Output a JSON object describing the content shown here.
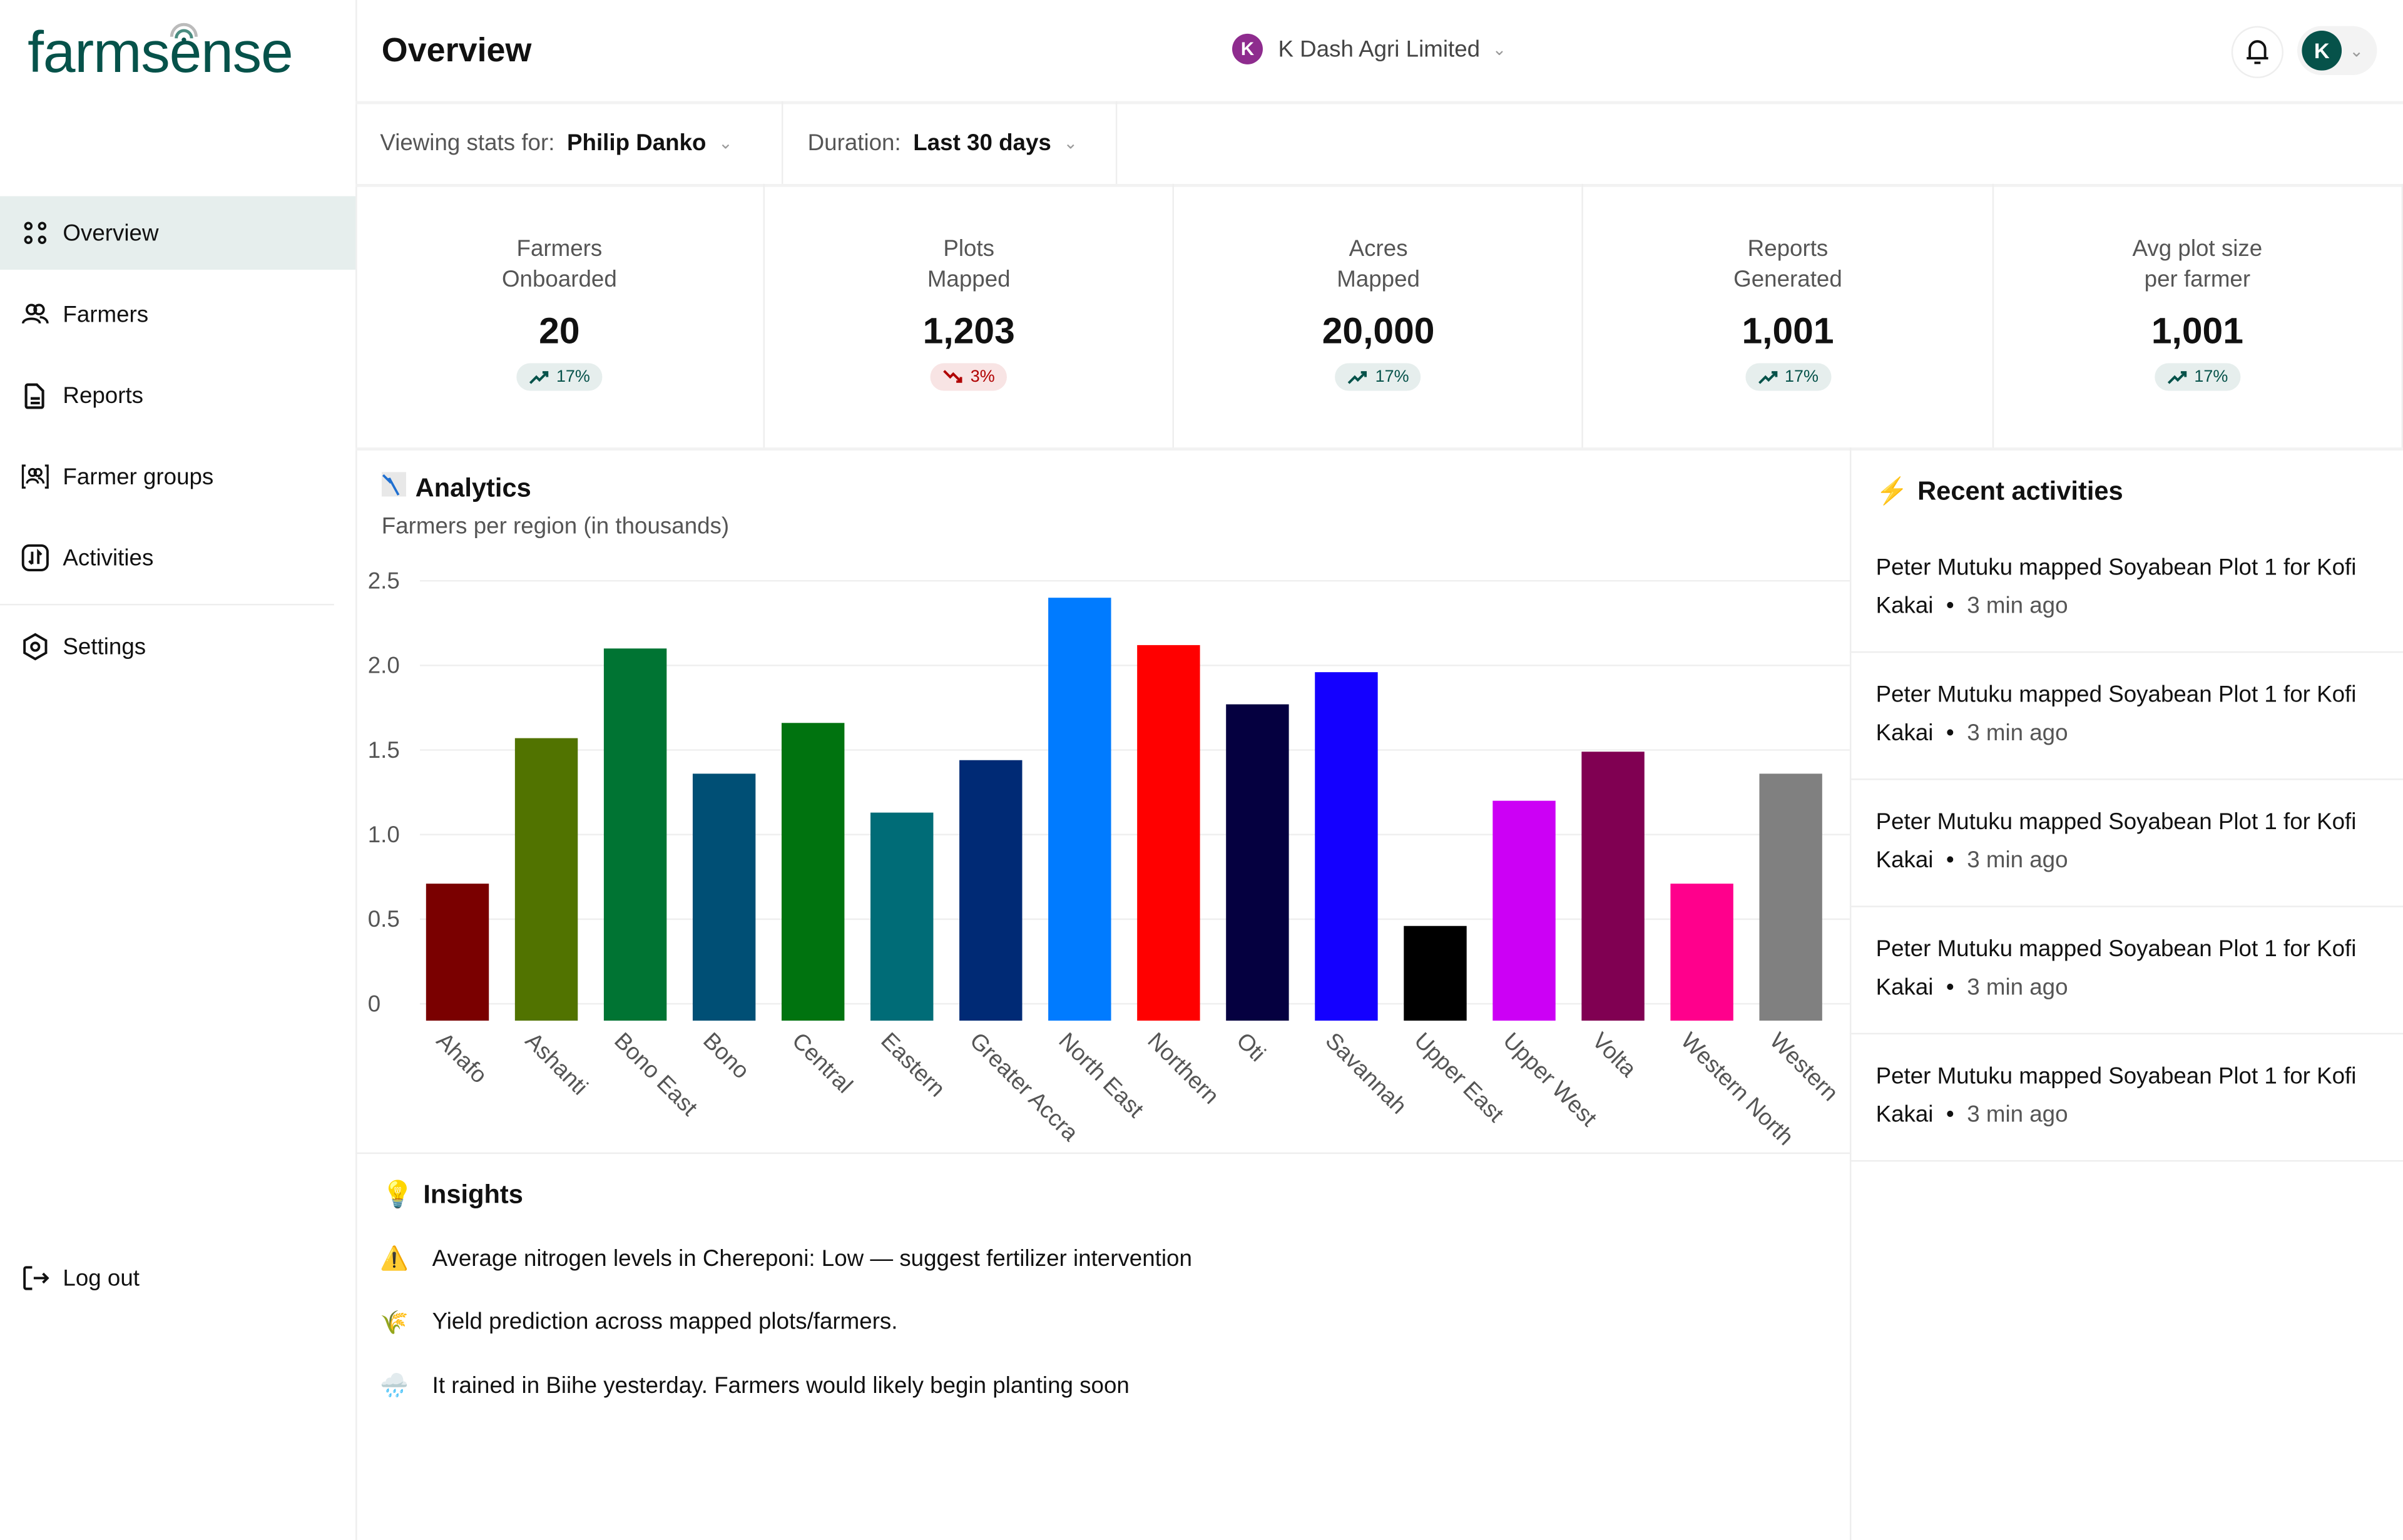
{
  "app": {
    "logo": "farmsense"
  },
  "sidebar": {
    "items": [
      {
        "label": "Overview",
        "icon": "grid-dots-icon",
        "active": true
      },
      {
        "label": "Farmers",
        "icon": "users-icon"
      },
      {
        "label": "Reports",
        "icon": "document-icon"
      },
      {
        "label": "Farmer groups",
        "icon": "user-group-icon"
      },
      {
        "label": "Activities",
        "icon": "activity-arrows-icon"
      },
      {
        "label": "Settings",
        "icon": "settings-hexagon-icon"
      }
    ],
    "logout": "Log out"
  },
  "header": {
    "title": "Overview",
    "org_name": "K Dash Agri Limited",
    "org_logo_letter": "K",
    "avatar_letter": "K"
  },
  "filters": {
    "viewing_label": "Viewing stats for:",
    "viewing_value": "Philip Danko",
    "duration_label": "Duration:",
    "duration_value": "Last 30 days"
  },
  "stats": [
    {
      "label1": "Farmers",
      "label2": "Onboarded",
      "value": "20",
      "change": "17%",
      "trend": "up"
    },
    {
      "label1": "Plots",
      "label2": "Mapped",
      "value": "1,203",
      "change": "3%",
      "trend": "down"
    },
    {
      "label1": "Acres",
      "label2": "Mapped",
      "value": "20,000",
      "change": "17%",
      "trend": "up"
    },
    {
      "label1": "Reports",
      "label2": "Generated",
      "value": "1,001",
      "change": "17%",
      "trend": "up"
    },
    {
      "label1": "Avg plot size",
      "label2": "per farmer",
      "value": "1,001",
      "change": "17%",
      "trend": "up"
    }
  ],
  "colors": {
    "brand": "#06524a",
    "up": "#06524a",
    "down": "#b00000",
    "active_bg": "#e6eeed"
  },
  "analytics": {
    "title": "Analytics",
    "subtitle": "Farmers per region (in thousands)"
  },
  "chart_data": {
    "type": "bar",
    "title": "",
    "xlabel": "",
    "ylabel": "",
    "ylim": [
      0,
      2.5
    ],
    "yticks": [
      "0",
      "0.5",
      "1.0",
      "1.5",
      "2.0",
      "2.5"
    ],
    "grid": true,
    "categories": [
      "Ahafo",
      "Ashanti",
      "Bono East",
      "Bono",
      "Central",
      "Eastern",
      "Greater Accra",
      "North East",
      "Northern",
      "Oti",
      "Savannah",
      "Upper East",
      "Upper West",
      "Volta",
      "Western North",
      "Western"
    ],
    "values": [
      0.71,
      1.57,
      2.1,
      1.36,
      1.66,
      1.13,
      1.44,
      2.4,
      2.12,
      1.77,
      1.96,
      0.46,
      1.2,
      1.49,
      0.71,
      1.36
    ],
    "colors": [
      "#7a0000",
      "#517300",
      "#007433",
      "#004f75",
      "#00730f",
      "#006c77",
      "#002a75",
      "#007bff",
      "#ff0000",
      "#050040",
      "#1400ff",
      "#000000",
      "#cc00f5",
      "#800052",
      "#ff008c",
      "#808080"
    ]
  },
  "recent_activities": {
    "title": "Recent activities",
    "items": [
      {
        "text": "Peter Mutuku mapped Soyabean Plot 1 for Kofi Kakai",
        "time": "3 min ago"
      },
      {
        "text": "Peter Mutuku mapped Soyabean Plot 1 for Kofi Kakai",
        "time": "3 min ago"
      },
      {
        "text": "Peter Mutuku mapped Soyabean Plot 1 for Kofi Kakai",
        "time": "3 min ago"
      },
      {
        "text": "Peter Mutuku mapped Soyabean Plot 1 for Kofi Kakai",
        "time": "3 min ago"
      },
      {
        "text": "Peter Mutuku mapped Soyabean Plot 1 for Kofi Kakai",
        "time": "3 min ago"
      }
    ]
  },
  "insights": {
    "title": "Insights",
    "items": [
      {
        "icon": "warning-icon",
        "glyph": "⚠️",
        "text": "Average nitrogen levels in Chereponi: Low — suggest fertilizer intervention"
      },
      {
        "icon": "rice-icon",
        "glyph": "🌾",
        "text": "Yield prediction across mapped plots/farmers."
      },
      {
        "icon": "rain-cloud-icon",
        "glyph": "🌧️",
        "text": "It rained in Biihe yesterday. Farmers would likely begin planting soon"
      }
    ]
  }
}
